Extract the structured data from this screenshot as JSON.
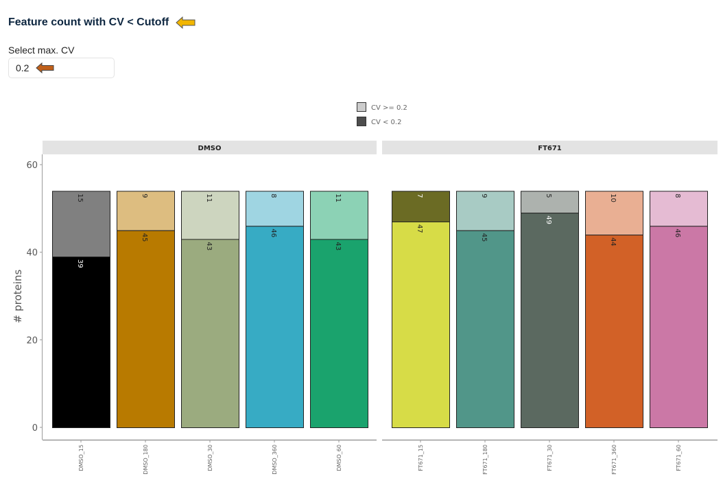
{
  "header": {
    "title": "Feature count with CV < Cutoff",
    "title_arrow_color": "#f2b600"
  },
  "cv_input": {
    "label": "Select max. CV",
    "value": "0.2",
    "arrow_color": "#c0601a"
  },
  "chart_data": {
    "type": "bar",
    "stacked": true,
    "ylabel": "# proteins",
    "ylim": [
      0,
      60
    ],
    "yticks": [
      0,
      20,
      40,
      60
    ],
    "grid": false,
    "legend": {
      "placement": "top",
      "entries": [
        {
          "label": "CV >= 0.2",
          "color": "#cccccc"
        },
        {
          "label": "CV < 0.2",
          "color": "#4d4d4d"
        }
      ]
    },
    "panels": [
      {
        "name": "DMSO",
        "categories": [
          "DMSO_15",
          "DMSO_180",
          "DMSO_30",
          "DMSO_360",
          "DMSO_60"
        ],
        "below": [
          39,
          45,
          43,
          46,
          43
        ],
        "above": [
          15,
          9,
          11,
          8,
          11
        ],
        "colors_below": [
          "#000000",
          "#b87a00",
          "#9bab7f",
          "#37abc4",
          "#1aa36d"
        ],
        "colors_above": [
          "#808080",
          "#ddbd80",
          "#cdd5bf",
          "#9fd5e2",
          "#8cd2b5"
        ]
      },
      {
        "name": "FT671",
        "categories": [
          "FT671_15",
          "FT671_180",
          "FT671_30",
          "FT671_360",
          "FT671_60"
        ],
        "below": [
          47,
          45,
          49,
          44,
          46
        ],
        "above": [
          7,
          9,
          5,
          10,
          8
        ],
        "colors_below": [
          "#d7dc47",
          "#519689",
          "#5b6960",
          "#d26127",
          "#cb78a6"
        ],
        "colors_above": [
          "#6b6b24",
          "#a8cbc4",
          "#adb2ae",
          "#e9af93",
          "#e5bbd3"
        ]
      }
    ]
  }
}
